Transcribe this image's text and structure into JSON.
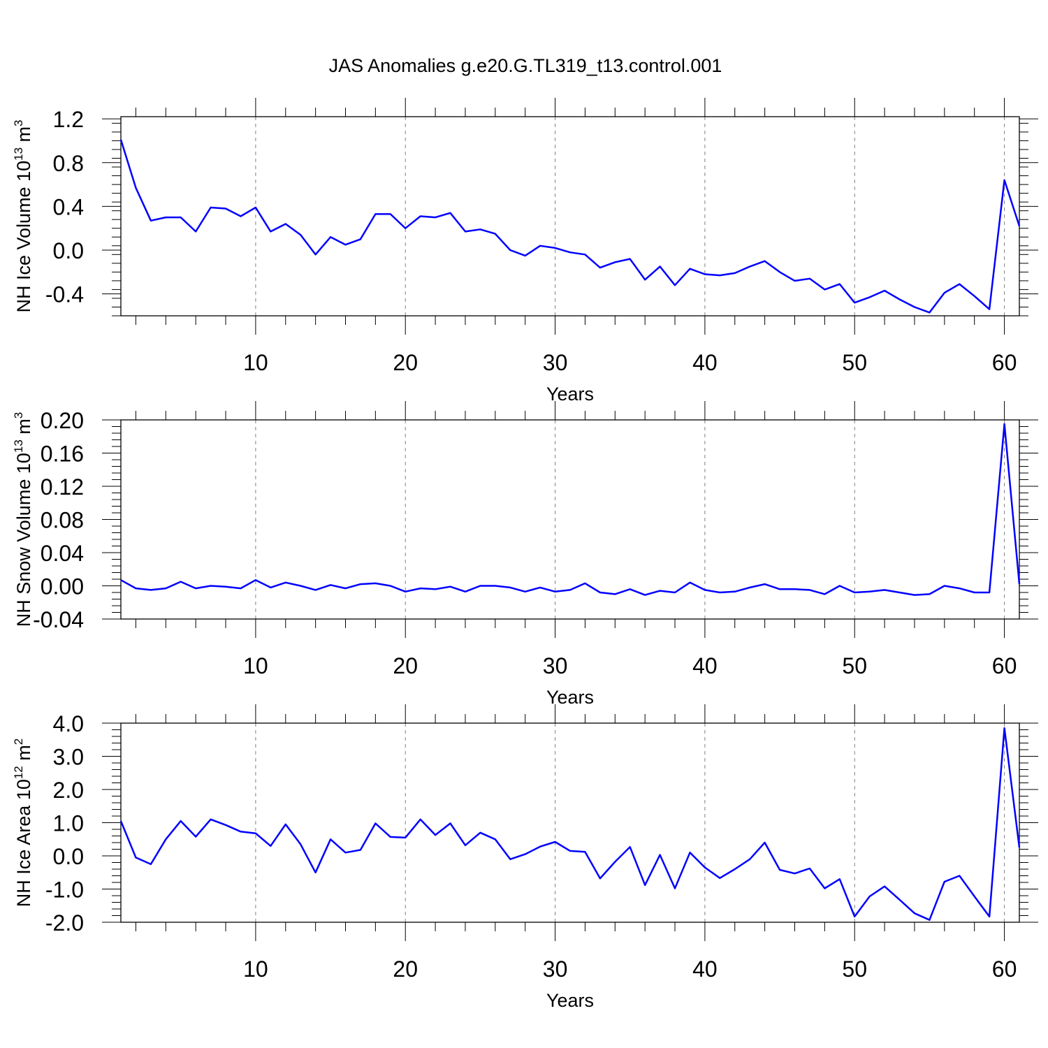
{
  "title": "JAS Anomalies g.e20.G.TL319_t13.control.001",
  "colors": {
    "line": "#0000ff",
    "axis": "#000000",
    "grid": "#808080"
  },
  "chart_data": [
    {
      "type": "line",
      "name": "ice-volume",
      "ylabel": {
        "main": "NH Ice Volume 10",
        "exp": "13",
        "unit": " m",
        "unit_exp": "3"
      },
      "xlabel": "Years",
      "xlim": [
        1,
        61
      ],
      "ylim": [
        -0.6,
        1.22
      ],
      "x_ticks": [
        10,
        20,
        30,
        40,
        50,
        60
      ],
      "x_tick_labels": [
        "10",
        "20",
        "30",
        "40",
        "50",
        "60"
      ],
      "y_ticks": [
        -0.4,
        0.0,
        0.4,
        0.8,
        1.2
      ],
      "y_tick_labels": [
        "-0.4",
        "0.0",
        "0.4",
        "0.8",
        "1.2"
      ],
      "y_minor_step": 0.08,
      "grid": "vertical dashed at major x ticks",
      "x": [
        1,
        2,
        3,
        4,
        5,
        6,
        7,
        8,
        9,
        10,
        11,
        12,
        13,
        14,
        15,
        16,
        17,
        18,
        19,
        20,
        21,
        22,
        23,
        24,
        25,
        26,
        27,
        28,
        29,
        30,
        31,
        32,
        33,
        34,
        35,
        36,
        37,
        38,
        39,
        40,
        41,
        42,
        43,
        44,
        45,
        46,
        47,
        48,
        49,
        50,
        51,
        52,
        53,
        54,
        55,
        56,
        57,
        58,
        59,
        60,
        61
      ],
      "values": [
        1.01,
        0.57,
        0.27,
        0.3,
        0.3,
        0.17,
        0.39,
        0.38,
        0.31,
        0.39,
        0.17,
        0.24,
        0.14,
        -0.04,
        0.12,
        0.05,
        0.1,
        0.33,
        0.33,
        0.2,
        0.31,
        0.3,
        0.34,
        0.17,
        0.19,
        0.15,
        0.0,
        -0.05,
        0.04,
        0.02,
        -0.02,
        -0.04,
        -0.16,
        -0.11,
        -0.08,
        -0.27,
        -0.15,
        -0.32,
        -0.17,
        -0.22,
        -0.23,
        -0.21,
        -0.15,
        -0.1,
        -0.2,
        -0.28,
        -0.26,
        -0.36,
        -0.31,
        -0.48,
        -0.43,
        -0.37,
        -0.45,
        -0.52,
        -0.57,
        -0.39,
        -0.31,
        -0.42,
        -0.54,
        0.64,
        0.22
      ]
    },
    {
      "type": "line",
      "name": "snow-volume",
      "ylabel": {
        "main": "NH Snow Volume 10",
        "exp": "13",
        "unit": " m",
        "unit_exp": "3"
      },
      "xlabel": "Years",
      "xlim": [
        1,
        61
      ],
      "ylim": [
        -0.04,
        0.2
      ],
      "x_ticks": [
        10,
        20,
        30,
        40,
        50,
        60
      ],
      "x_tick_labels": [
        "10",
        "20",
        "30",
        "40",
        "50",
        "60"
      ],
      "y_ticks": [
        -0.04,
        0.0,
        0.04,
        0.08,
        0.12,
        0.16,
        0.2
      ],
      "y_tick_labels": [
        "-0.04",
        "0.00",
        "0.04",
        "0.08",
        "0.12",
        "0.16",
        "0.20"
      ],
      "y_minor_step": 0.008,
      "grid": "vertical dashed at major x ticks",
      "x": [
        1,
        2,
        3,
        4,
        5,
        6,
        7,
        8,
        9,
        10,
        11,
        12,
        13,
        14,
        15,
        16,
        17,
        18,
        19,
        20,
        21,
        22,
        23,
        24,
        25,
        26,
        27,
        28,
        29,
        30,
        31,
        32,
        33,
        34,
        35,
        36,
        37,
        38,
        39,
        40,
        41,
        42,
        43,
        44,
        45,
        46,
        47,
        48,
        49,
        50,
        51,
        52,
        53,
        54,
        55,
        56,
        57,
        58,
        59,
        60,
        61
      ],
      "values": [
        0.007,
        -0.003,
        -0.005,
        -0.003,
        0.005,
        -0.003,
        0.0,
        -0.001,
        -0.003,
        0.007,
        -0.002,
        0.004,
        0.0,
        -0.005,
        0.001,
        -0.003,
        0.002,
        0.003,
        0.0,
        -0.007,
        -0.003,
        -0.004,
        -0.001,
        -0.007,
        0.0,
        0.0,
        -0.002,
        -0.007,
        -0.002,
        -0.007,
        -0.005,
        0.003,
        -0.008,
        -0.01,
        -0.004,
        -0.011,
        -0.006,
        -0.008,
        0.004,
        -0.005,
        -0.008,
        -0.007,
        -0.002,
        0.002,
        -0.004,
        -0.004,
        -0.005,
        -0.01,
        0.0,
        -0.008,
        -0.007,
        -0.005,
        -0.008,
        -0.011,
        -0.01,
        0.0,
        -0.003,
        -0.008,
        -0.008,
        0.195,
        0.002
      ]
    },
    {
      "type": "line",
      "name": "ice-area",
      "ylabel": {
        "main": "NH Ice Area 10",
        "exp": "12",
        "unit": " m",
        "unit_exp": "2"
      },
      "xlabel": "Years",
      "xlim": [
        1,
        61
      ],
      "ylim": [
        -2.0,
        4.0
      ],
      "x_ticks": [
        10,
        20,
        30,
        40,
        50,
        60
      ],
      "x_tick_labels": [
        "10",
        "20",
        "30",
        "40",
        "50",
        "60"
      ],
      "y_ticks": [
        -2.0,
        -1.0,
        0.0,
        1.0,
        2.0,
        3.0,
        4.0
      ],
      "y_tick_labels": [
        "-2.0",
        "-1.0",
        "0.0",
        "1.0",
        "2.0",
        "3.0",
        "4.0"
      ],
      "y_minor_step": 0.2,
      "grid": "vertical dashed at major x ticks",
      "x": [
        1,
        2,
        3,
        4,
        5,
        6,
        7,
        8,
        9,
        10,
        11,
        12,
        13,
        14,
        15,
        16,
        17,
        18,
        19,
        20,
        21,
        22,
        23,
        24,
        25,
        26,
        27,
        28,
        29,
        30,
        31,
        32,
        33,
        34,
        35,
        36,
        37,
        38,
        39,
        40,
        41,
        42,
        43,
        44,
        45,
        46,
        47,
        48,
        49,
        50,
        51,
        52,
        53,
        54,
        55,
        56,
        57,
        58,
        59,
        60,
        61
      ],
      "values": [
        1.05,
        -0.05,
        -0.25,
        0.5,
        1.05,
        0.58,
        1.1,
        0.93,
        0.73,
        0.68,
        0.3,
        0.95,
        0.35,
        -0.5,
        0.5,
        0.1,
        0.18,
        0.98,
        0.57,
        0.55,
        1.1,
        0.63,
        0.98,
        0.32,
        0.7,
        0.5,
        -0.1,
        0.05,
        0.28,
        0.42,
        0.15,
        0.12,
        -0.68,
        -0.18,
        0.27,
        -0.88,
        0.03,
        -0.98,
        0.1,
        -0.35,
        -0.67,
        -0.4,
        -0.1,
        0.4,
        -0.42,
        -0.53,
        -0.38,
        -0.98,
        -0.7,
        -1.83,
        -1.22,
        -0.92,
        -1.32,
        -1.73,
        -1.93,
        -0.78,
        -0.6,
        -1.22,
        -1.83,
        3.85,
        0.25
      ]
    }
  ]
}
